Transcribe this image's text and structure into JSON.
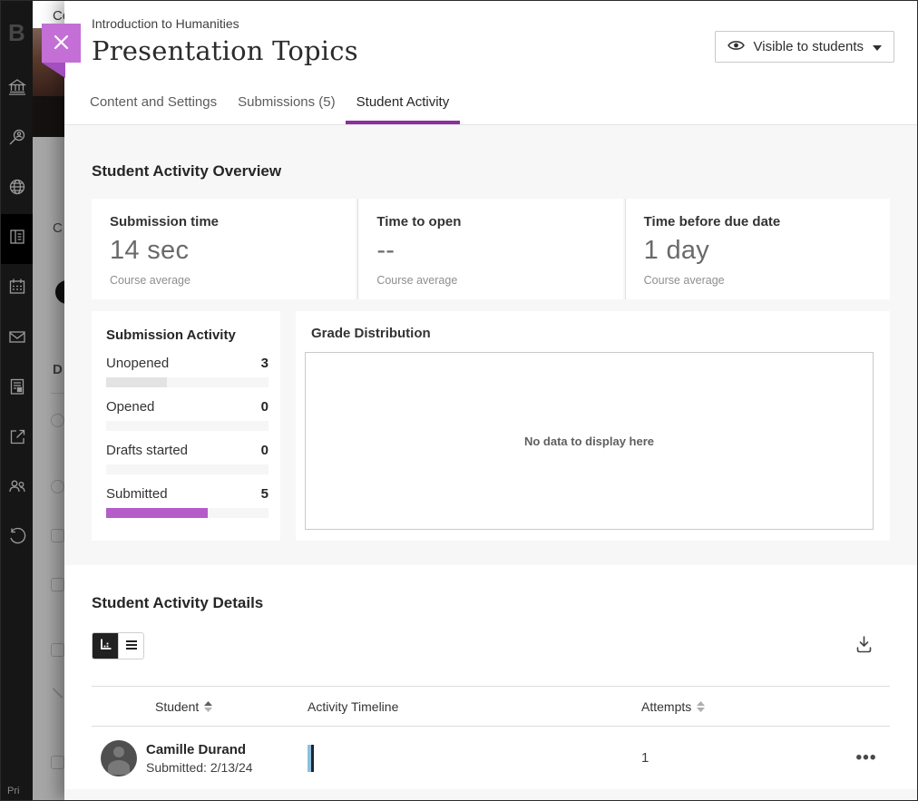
{
  "app_sidebar": {
    "logo_letter": "B",
    "privacy_label": "Pri",
    "icons": [
      "institution-icon",
      "search-icon",
      "globe-icon",
      "content-icon",
      "calendar-icon",
      "messages-icon",
      "gradebook-icon",
      "sign-out-icon",
      "groups-icon",
      "history-icon"
    ],
    "active_icon": "content-icon"
  },
  "background_page": {
    "clipped_top_text": "Co",
    "clipped_course_letter": "C",
    "clipped_details_letter": "D"
  },
  "panel_header": {
    "breadcrumb": "Introduction to Humanities",
    "title": "Presentation Topics",
    "visibility_button": {
      "label": "Visible to students"
    }
  },
  "tabs": {
    "items": [
      {
        "label": "Content and Settings",
        "active": false
      },
      {
        "label": "Submissions (5)",
        "active": false
      },
      {
        "label": "Student Activity",
        "active": true
      }
    ]
  },
  "overview": {
    "heading": "Student Activity Overview",
    "metrics": [
      {
        "label": "Submission time",
        "value": "14 sec",
        "caption": "Course average"
      },
      {
        "label": "Time to open",
        "value": "--",
        "caption": "Course average"
      },
      {
        "label": "Time before due date",
        "value": "1 day",
        "caption": "Course average"
      }
    ]
  },
  "submission_activity": {
    "heading": "Submission Activity",
    "rows": [
      {
        "label": "Unopened",
        "count": "3",
        "pct": 37.5,
        "color": "#e3e3e3"
      },
      {
        "label": "Opened",
        "count": "0",
        "pct": 0,
        "color": "#e3e3e3"
      },
      {
        "label": "Drafts started",
        "count": "0",
        "pct": 0,
        "color": "#e3e3e3"
      },
      {
        "label": "Submitted",
        "count": "5",
        "pct": 62.5,
        "color": "#b45cc8"
      }
    ]
  },
  "grade_distribution": {
    "heading": "Grade Distribution",
    "empty_message": "No data to display here"
  },
  "details": {
    "heading": "Student Activity Details",
    "columns": {
      "student": "Student",
      "timeline": "Activity Timeline",
      "attempts": "Attempts"
    },
    "rows": [
      {
        "name": "Camille Durand",
        "status": "Submitted: 2/13/24",
        "attempts": "1"
      }
    ]
  },
  "colors": {
    "accent_purple": "#8b2f9e",
    "bar_purple": "#b45cc8",
    "close_button_purple": "#c36fd6",
    "close_tail_purple": "#a44fc0",
    "timeline_blue": "#8fc1dc"
  }
}
